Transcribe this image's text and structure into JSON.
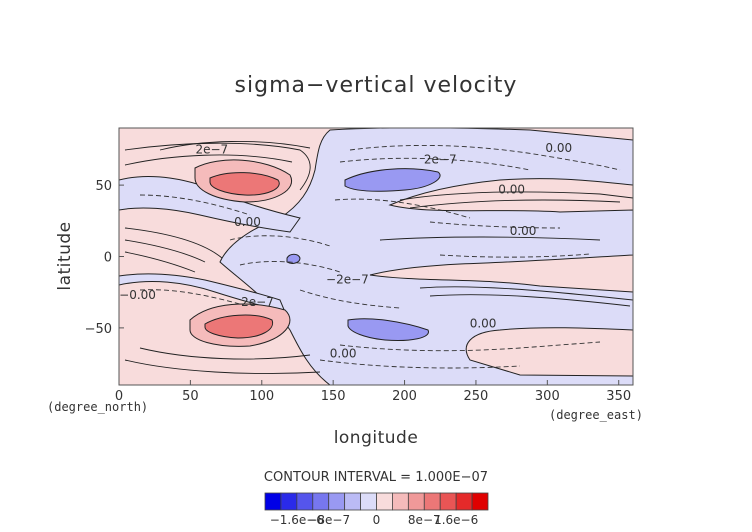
{
  "chart_data": {
    "type": "contour",
    "title": "sigma−vertical velocity",
    "xlabel": "longitude",
    "ylabel": "latitude",
    "xlim": [
      0,
      360
    ],
    "ylim": [
      -90,
      90
    ],
    "x_ticks": [
      0,
      50,
      100,
      150,
      200,
      250,
      300,
      350
    ],
    "y_ticks": [
      -50,
      0,
      50
    ],
    "x_tick_labels": [
      "0",
      "50",
      "100",
      "150",
      "200",
      "250",
      "300",
      "350"
    ],
    "y_tick_labels": [
      "−50",
      "0",
      "50"
    ],
    "x_unit": "(degree_east)",
    "y_unit": "(degree_north)",
    "contour_interval_text": "CONTOUR INTERVAL = 1.000E−07",
    "contour_labels": [
      {
        "text": "2e−7",
        "lon": 65,
        "lat": 75
      },
      {
        "text": "2e−7",
        "lon": 225,
        "lat": 68
      },
      {
        "text": "0.00",
        "lon": 308,
        "lat": 76
      },
      {
        "text": "0.00",
        "lon": 275,
        "lat": 47
      },
      {
        "text": "0.00",
        "lon": 90,
        "lat": 24
      },
      {
        "text": "0.00",
        "lon": 283,
        "lat": 18
      },
      {
        "text": "−0.00",
        "lon": 13,
        "lat": -27
      },
      {
        "text": "2e−7",
        "lon": 97,
        "lat": -32
      },
      {
        "text": "0.00",
        "lon": 255,
        "lat": -47
      },
      {
        "text": "0.00",
        "lon": 157,
        "lat": -68
      },
      {
        "text": "−2e−7",
        "lon": 160,
        "lat": -16
      }
    ],
    "colorbar": {
      "tick_labels": [
        "−1.6e−6",
        "−8e−7",
        "0",
        "8e−7",
        "1.6e−6"
      ],
      "colors": [
        "#0000e6",
        "#2a2ae9",
        "#5555ec",
        "#7777ef",
        "#9999f2",
        "#bbbbf5",
        "#dcdcf8",
        "#f8dcdc",
        "#f5bbbb",
        "#f09999",
        "#ec7777",
        "#e95555",
        "#e52a2a",
        "#e00000"
      ]
    }
  }
}
